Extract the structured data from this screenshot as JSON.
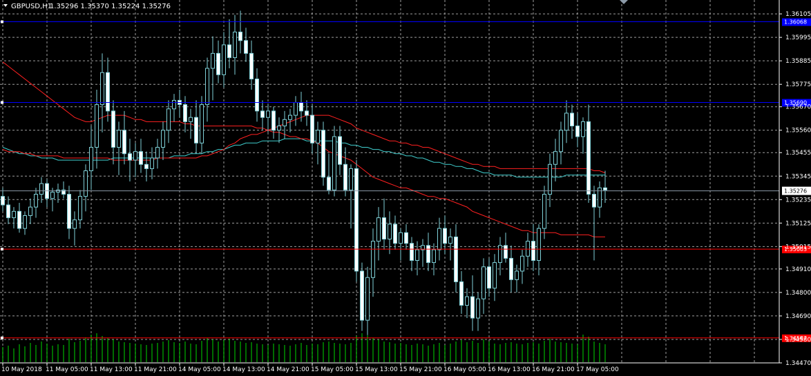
{
  "header": {
    "symbol_timeframe": "GBPUSD,H1",
    "ohlc": "1.35296 1.35370 1.35224 1.35276"
  },
  "colors": {
    "background": "#000000",
    "grid": "#c8c8c8",
    "candle_up": "#000000",
    "candle_down": "#ffffff",
    "wick": "#7fd1d8",
    "volume": "#00ff00",
    "ma_fast": "#ff2020",
    "ma_slow": "#40d0d0",
    "level_blue": "#0000ff",
    "level_red": "#ff0000",
    "bid_line": "#8c9aa8"
  },
  "chart_data": {
    "type": "candlestick",
    "ylim": [
      1.3447,
      1.3617
    ],
    "y_ticks": [
      "1.36105",
      "1.35995",
      "1.35885",
      "1.35775",
      "1.35670",
      "1.35560",
      "1.35455",
      "1.35345",
      "1.35235",
      "1.35125",
      "1.35015",
      "1.34910",
      "1.34800",
      "1.34690",
      "1.34580",
      "1.34470"
    ],
    "x_ticks": [
      "10 May 2018",
      "11 May 05:00",
      "11 May 13:00",
      "11 May 21:00",
      "14 May 05:00",
      "14 May 13:00",
      "14 May 21:00",
      "15 May 05:00",
      "15 May 13:00",
      "15 May 21:00",
      "16 May 05:00",
      "16 May 13:00",
      "16 May 21:00",
      "17 May 05:00"
    ],
    "current_price": "1.35276",
    "levels": [
      {
        "price": 1.36068,
        "color": "blue",
        "label": "1.36068"
      },
      {
        "price": 1.3569,
        "color": "blue",
        "label": "1.35690"
      },
      {
        "price": 1.35003,
        "color": "red",
        "label": "1.35003"
      },
      {
        "price": 1.34587,
        "color": "red",
        "label": "1.34587"
      }
    ],
    "candles": [
      [
        1.3525,
        1.3529,
        1.3518,
        1.3521
      ],
      [
        1.3521,
        1.3525,
        1.3512,
        1.3515
      ],
      [
        1.3515,
        1.352,
        1.351,
        1.3518
      ],
      [
        1.3518,
        1.3522,
        1.3508,
        1.351
      ],
      [
        1.351,
        1.3518,
        1.3507,
        1.3516
      ],
      [
        1.3516,
        1.3524,
        1.3512,
        1.352
      ],
      [
        1.352,
        1.3529,
        1.3515,
        1.3526
      ],
      [
        1.3526,
        1.3534,
        1.3522,
        1.3531
      ],
      [
        1.3531,
        1.3533,
        1.352,
        1.3524
      ],
      [
        1.3524,
        1.3529,
        1.3518,
        1.3527
      ],
      [
        1.3527,
        1.3531,
        1.3522,
        1.3528
      ],
      [
        1.3528,
        1.3532,
        1.3524,
        1.3526
      ],
      [
        1.3526,
        1.353,
        1.3505,
        1.351
      ],
      [
        1.351,
        1.3518,
        1.3502,
        1.3514
      ],
      [
        1.3514,
        1.3528,
        1.351,
        1.3525
      ],
      [
        1.3525,
        1.354,
        1.3518,
        1.3537
      ],
      [
        1.3537,
        1.3558,
        1.3528,
        1.3548
      ],
      [
        1.3548,
        1.3575,
        1.3538,
        1.3568
      ],
      [
        1.3568,
        1.3592,
        1.3555,
        1.3583
      ],
      [
        1.3583,
        1.359,
        1.356,
        1.3565
      ],
      [
        1.3565,
        1.357,
        1.354,
        1.3548
      ],
      [
        1.3548,
        1.356,
        1.3535,
        1.3556
      ],
      [
        1.3556,
        1.3565,
        1.354,
        1.3545
      ],
      [
        1.3545,
        1.3552,
        1.3532,
        1.3542
      ],
      [
        1.3542,
        1.355,
        1.3534,
        1.3546
      ],
      [
        1.3546,
        1.3552,
        1.3536,
        1.354
      ],
      [
        1.354,
        1.3546,
        1.3532,
        1.3538
      ],
      [
        1.3538,
        1.3548,
        1.3533,
        1.3543
      ],
      [
        1.3543,
        1.3552,
        1.3538,
        1.3548
      ],
      [
        1.3548,
        1.356,
        1.3542,
        1.3556
      ],
      [
        1.3556,
        1.357,
        1.355,
        1.3566
      ],
      [
        1.3566,
        1.3573,
        1.356,
        1.357
      ],
      [
        1.357,
        1.3575,
        1.3562,
        1.3568
      ],
      [
        1.3568,
        1.3572,
        1.3555,
        1.356
      ],
      [
        1.356,
        1.3566,
        1.3552,
        1.3562
      ],
      [
        1.3562,
        1.357,
        1.3545,
        1.355
      ],
      [
        1.355,
        1.3572,
        1.3545,
        1.3568
      ],
      [
        1.3568,
        1.359,
        1.356,
        1.3585
      ],
      [
        1.3585,
        1.36,
        1.357,
        1.3592
      ],
      [
        1.3592,
        1.3598,
        1.3578,
        1.3582
      ],
      [
        1.3582,
        1.3602,
        1.3576,
        1.3596
      ],
      [
        1.3596,
        1.3608,
        1.3585,
        1.359
      ],
      [
        1.359,
        1.361,
        1.3582,
        1.3602
      ],
      [
        1.3602,
        1.3612,
        1.3592,
        1.3598
      ],
      [
        1.3598,
        1.3604,
        1.3588,
        1.3592
      ],
      [
        1.3592,
        1.3598,
        1.3575,
        1.358
      ],
      [
        1.358,
        1.3585,
        1.356,
        1.3565
      ],
      [
        1.3565,
        1.357,
        1.3556,
        1.3562
      ],
      [
        1.3562,
        1.3568,
        1.3555,
        1.3565
      ],
      [
        1.3565,
        1.3567,
        1.3552,
        1.3556
      ],
      [
        1.3556,
        1.3562,
        1.355,
        1.3558
      ],
      [
        1.3558,
        1.3565,
        1.3552,
        1.3561
      ],
      [
        1.3561,
        1.3566,
        1.3555,
        1.3563
      ],
      [
        1.3563,
        1.3572,
        1.3558,
        1.3569
      ],
      [
        1.3569,
        1.3574,
        1.356,
        1.3565
      ],
      [
        1.3565,
        1.357,
        1.3558,
        1.3563
      ],
      [
        1.3563,
        1.3568,
        1.3545,
        1.355
      ],
      [
        1.355,
        1.356,
        1.354,
        1.3556
      ],
      [
        1.3556,
        1.356,
        1.353,
        1.3534
      ],
      [
        1.3534,
        1.3545,
        1.3526,
        1.3528
      ],
      [
        1.3528,
        1.3558,
        1.3525,
        1.3553
      ],
      [
        1.3553,
        1.3558,
        1.3535,
        1.354
      ],
      [
        1.354,
        1.3548,
        1.3525,
        1.3528
      ],
      [
        1.3528,
        1.354,
        1.351,
        1.3538
      ],
      [
        1.3538,
        1.3542,
        1.3485,
        1.349
      ],
      [
        1.349,
        1.3494,
        1.3462,
        1.3467
      ],
      [
        1.3467,
        1.3492,
        1.346,
        1.3487
      ],
      [
        1.3487,
        1.351,
        1.3478,
        1.3504
      ],
      [
        1.3504,
        1.352,
        1.3495,
        1.3515
      ],
      [
        1.3515,
        1.3524,
        1.35,
        1.3505
      ],
      [
        1.3505,
        1.3518,
        1.3498,
        1.3512
      ],
      [
        1.3512,
        1.3516,
        1.35,
        1.3503
      ],
      [
        1.3503,
        1.351,
        1.3495,
        1.3508
      ],
      [
        1.3508,
        1.3512,
        1.35,
        1.3503
      ],
      [
        1.3503,
        1.3506,
        1.349,
        1.3495
      ],
      [
        1.3495,
        1.3504,
        1.3488,
        1.35
      ],
      [
        1.35,
        1.3505,
        1.3492,
        1.3502
      ],
      [
        1.3502,
        1.3508,
        1.349,
        1.3494
      ],
      [
        1.3494,
        1.3503,
        1.3488,
        1.35
      ],
      [
        1.35,
        1.3515,
        1.3495,
        1.351
      ],
      [
        1.351,
        1.3516,
        1.3498,
        1.3503
      ],
      [
        1.3503,
        1.351,
        1.3495,
        1.3506
      ],
      [
        1.3506,
        1.3512,
        1.348,
        1.3485
      ],
      [
        1.3485,
        1.349,
        1.347,
        1.3474
      ],
      [
        1.3474,
        1.3482,
        1.3468,
        1.3478
      ],
      [
        1.3478,
        1.3488,
        1.3462,
        1.3468
      ],
      [
        1.3468,
        1.348,
        1.3462,
        1.3477
      ],
      [
        1.3477,
        1.3496,
        1.347,
        1.3492
      ],
      [
        1.3492,
        1.3496,
        1.3478,
        1.3482
      ],
      [
        1.3482,
        1.3498,
        1.3476,
        1.3494
      ],
      [
        1.3494,
        1.3506,
        1.3488,
        1.3502
      ],
      [
        1.3502,
        1.3508,
        1.3494,
        1.3496
      ],
      [
        1.3496,
        1.3502,
        1.348,
        1.3486
      ],
      [
        1.3486,
        1.3493,
        1.348,
        1.349
      ],
      [
        1.349,
        1.35,
        1.3484,
        1.3497
      ],
      [
        1.3497,
        1.3508,
        1.3492,
        1.3504
      ],
      [
        1.3504,
        1.3512,
        1.349,
        1.3495
      ],
      [
        1.3495,
        1.3512,
        1.3488,
        1.351
      ],
      [
        1.351,
        1.353,
        1.3505,
        1.3526
      ],
      [
        1.3526,
        1.3545,
        1.352,
        1.354
      ],
      [
        1.354,
        1.3552,
        1.3532,
        1.3546
      ],
      [
        1.3546,
        1.356,
        1.354,
        1.3556
      ],
      [
        1.3556,
        1.357,
        1.355,
        1.3564
      ],
      [
        1.3564,
        1.3568,
        1.3552,
        1.3558
      ],
      [
        1.3558,
        1.3564,
        1.3548,
        1.3553
      ],
      [
        1.3553,
        1.3562,
        1.3545,
        1.356
      ],
      [
        1.356,
        1.3568,
        1.3522,
        1.3526
      ],
      [
        1.3526,
        1.353,
        1.3495,
        1.352
      ],
      [
        1.352,
        1.3532,
        1.3515,
        1.3529
      ],
      [
        1.3529,
        1.3537,
        1.3522,
        1.3528
      ]
    ],
    "volumes": [
      22,
      24,
      20,
      26,
      23,
      28,
      25,
      30,
      27,
      24,
      26,
      25,
      34,
      29,
      31,
      36,
      40,
      42,
      38,
      35,
      33,
      30,
      29,
      28,
      27,
      26,
      25,
      27,
      28,
      30,
      32,
      29,
      28,
      30,
      27,
      26,
      31,
      35,
      33,
      30,
      32,
      34,
      31,
      30,
      28,
      29,
      27,
      26,
      25,
      27,
      26,
      25,
      24,
      26,
      28,
      25,
      27,
      26,
      29,
      30,
      28,
      27,
      26,
      28,
      38,
      42,
      39,
      35,
      33,
      30,
      29,
      27,
      28,
      26,
      25,
      27,
      26,
      24,
      26,
      28,
      25,
      27,
      30,
      32,
      29,
      31,
      28,
      33,
      30,
      27,
      26,
      28,
      29,
      27,
      26,
      28,
      29,
      27,
      31,
      34,
      30,
      29,
      28,
      27,
      26,
      40,
      37,
      30,
      28,
      26
    ],
    "ma_fast": [
      1.3588,
      1.3586,
      1.3584,
      1.3582,
      1.358,
      1.3578,
      1.3576,
      1.3574,
      1.3572,
      1.357,
      1.3568,
      1.3566,
      1.3564,
      1.3562,
      1.3561,
      1.356,
      1.356,
      1.3561,
      1.3562,
      1.3563,
      1.3563,
      1.3563,
      1.3563,
      1.3562,
      1.3561,
      1.3561,
      1.356,
      1.356,
      1.356,
      1.356,
      1.356,
      1.356,
      1.356,
      1.3559,
      1.3559,
      1.3558,
      1.3558,
      1.3558,
      1.3558,
      1.3558,
      1.3558,
      1.3558,
      1.3558,
      1.3558,
      1.3558,
      1.3558,
      1.3557,
      1.3557,
      1.3556,
      1.3555,
      1.3555,
      1.3554,
      1.3553,
      1.3553,
      1.3552,
      1.3552,
      1.3551,
      1.355,
      1.3548,
      1.3546,
      1.3545,
      1.3544,
      1.3543,
      1.3542,
      1.354,
      1.3538,
      1.3536,
      1.3534,
      1.3533,
      1.3532,
      1.3531,
      1.353,
      1.3529,
      1.3529,
      1.3528,
      1.3527,
      1.3526,
      1.3525,
      1.3525,
      1.3524,
      1.3524,
      1.3523,
      1.3522,
      1.3521,
      1.352,
      1.3518,
      1.3517,
      1.3516,
      1.3515,
      1.3514,
      1.3513,
      1.3512,
      1.3511,
      1.351,
      1.3509,
      1.3509,
      1.3508,
      1.3508,
      1.3508,
      1.3508,
      1.3508,
      1.3507,
      1.3507,
      1.3507,
      1.3507,
      1.3507,
      1.3507,
      1.3506,
      1.3506,
      1.3506
    ],
    "ma_fast2": [
      1.3547,
      1.3546,
      1.3546,
      1.3546,
      1.3545,
      1.3545,
      1.3544,
      1.3544,
      1.3544,
      1.3544,
      1.3544,
      1.3543,
      1.3543,
      1.3543,
      1.3543,
      1.3543,
      1.3543,
      1.3543,
      1.3543,
      1.3543,
      1.3542,
      1.3542,
      1.3542,
      1.3542,
      1.3542,
      1.3542,
      1.3542,
      1.3542,
      1.3543,
      1.3543,
      1.3543,
      1.3543,
      1.3543,
      1.3543,
      1.3543,
      1.3543,
      1.3544,
      1.3544,
      1.3545,
      1.3546,
      1.3547,
      1.3549,
      1.355,
      1.3552,
      1.3553,
      1.3554,
      1.3554,
      1.3555,
      1.3556,
      1.3557,
      1.3558,
      1.3559,
      1.356,
      1.3561,
      1.3562,
      1.3563,
      1.3563,
      1.3563,
      1.3563,
      1.3563,
      1.3562,
      1.3561,
      1.356,
      1.3559,
      1.3557,
      1.3556,
      1.3555,
      1.3554,
      1.3553,
      1.3552,
      1.3551,
      1.3551,
      1.355,
      1.355,
      1.3549,
      1.3549,
      1.3548,
      1.3548,
      1.3547,
      1.3546,
      1.3545,
      1.3544,
      1.3543,
      1.3542,
      1.3541,
      1.354,
      1.354,
      1.3539,
      1.3539,
      1.3539,
      1.3538,
      1.3538,
      1.3538,
      1.3538,
      1.3538,
      1.3538,
      1.3538,
      1.3538,
      1.3538,
      1.3538,
      1.3538,
      1.3538,
      1.3538,
      1.3538,
      1.3538,
      1.3538,
      1.3538,
      1.3537,
      1.3537,
      1.3536
    ],
    "ma_slow": [
      1.3548,
      1.3547,
      1.3546,
      1.3545,
      1.3545,
      1.3544,
      1.3544,
      1.3543,
      1.3543,
      1.3543,
      1.3542,
      1.3542,
      1.3542,
      1.3542,
      1.3542,
      1.3542,
      1.3542,
      1.3542,
      1.3542,
      1.3542,
      1.3543,
      1.3543,
      1.3543,
      1.3543,
      1.3543,
      1.3543,
      1.3543,
      1.3543,
      1.3543,
      1.3543,
      1.3543,
      1.3544,
      1.3544,
      1.3544,
      1.3545,
      1.3545,
      1.3545,
      1.3546,
      1.3546,
      1.3547,
      1.3547,
      1.3548,
      1.3549,
      1.3549,
      1.355,
      1.355,
      1.355,
      1.3551,
      1.3551,
      1.3551,
      1.3551,
      1.3552,
      1.3552,
      1.3552,
      1.3552,
      1.3551,
      1.3551,
      1.3551,
      1.3551,
      1.3551,
      1.3551,
      1.355,
      1.355,
      1.3549,
      1.3549,
      1.3548,
      1.3548,
      1.3547,
      1.3547,
      1.3546,
      1.3546,
      1.3545,
      1.3545,
      1.3544,
      1.3544,
      1.3543,
      1.3543,
      1.3542,
      1.3541,
      1.3541,
      1.354,
      1.354,
      1.3539,
      1.3539,
      1.3538,
      1.3538,
      1.3537,
      1.3536,
      1.3536,
      1.3535,
      1.3535,
      1.3535,
      1.3535,
      1.3534,
      1.3534,
      1.3534,
      1.3534,
      1.3534,
      1.3534,
      1.3534,
      1.3534,
      1.3534,
      1.3535,
      1.3535,
      1.3535,
      1.3535,
      1.3535,
      1.3535,
      1.3535,
      1.3535
    ]
  }
}
